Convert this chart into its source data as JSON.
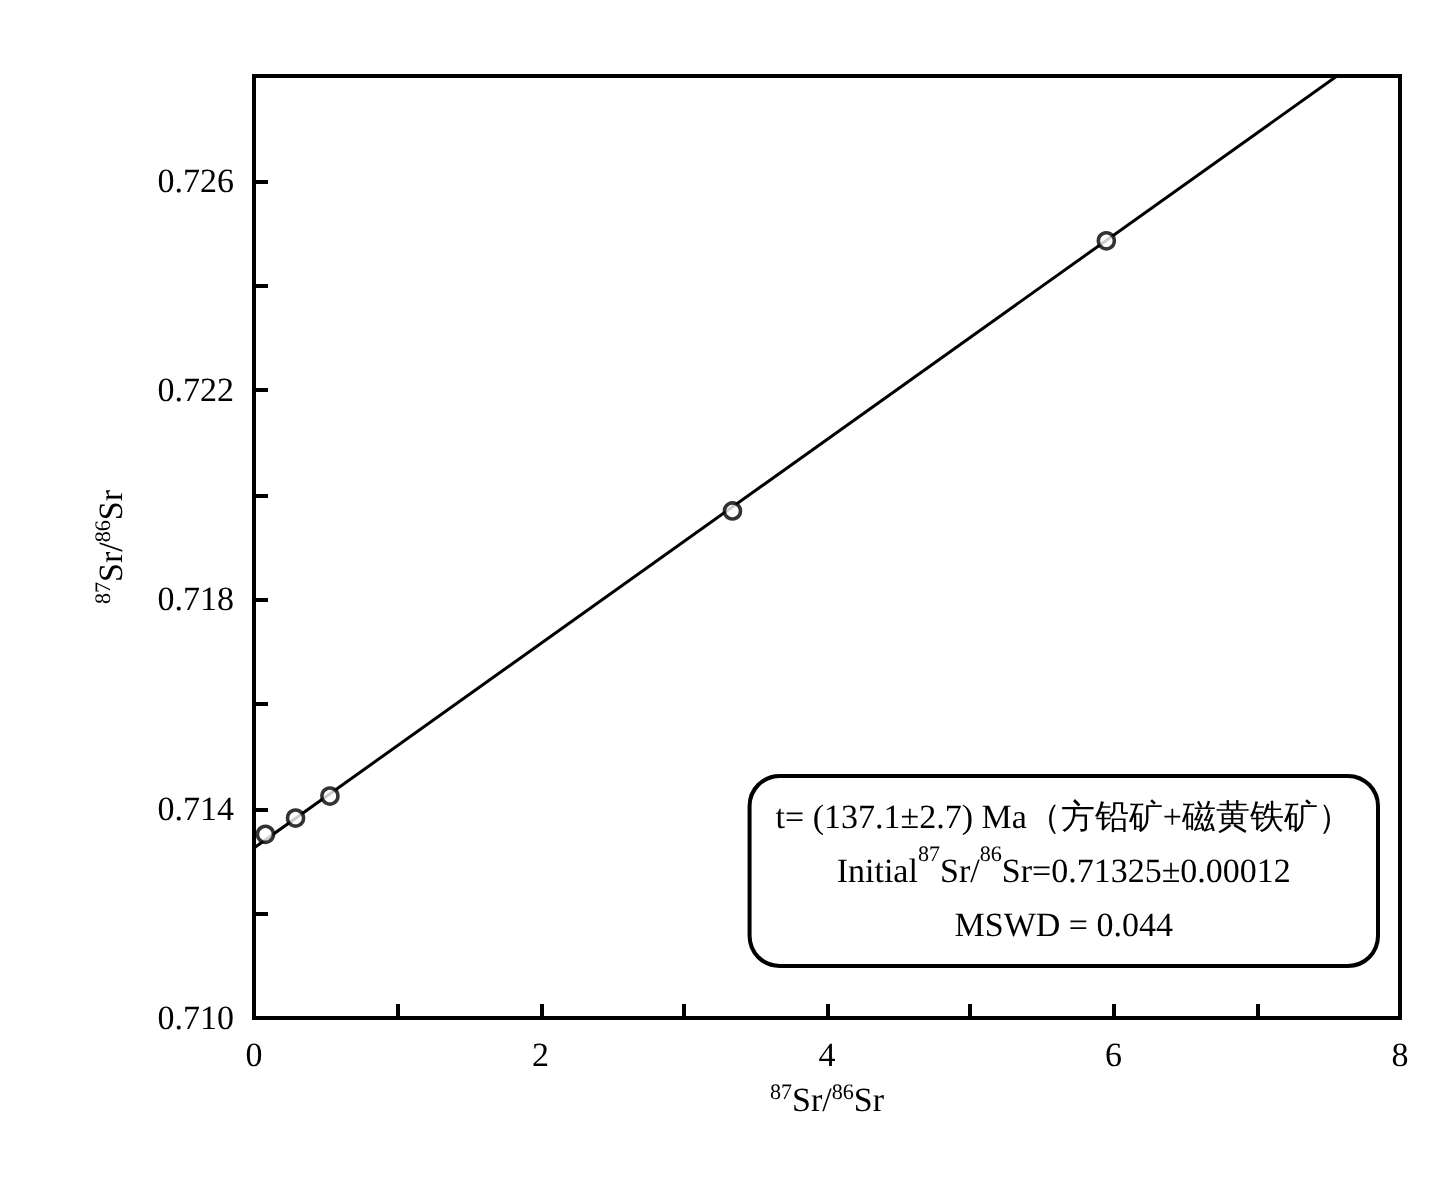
{
  "chart_data": {
    "type": "scatter",
    "xlabel": "$^{87}$Sr/$^{86}$Sr",
    "ylabel": "$^{87}$Sr/$^{86}$Sr",
    "series": [
      {
        "color": "#000000",
        "marker": "circle",
        "x": [
          0.08,
          0.29,
          0.53,
          3.34,
          5.95
        ],
        "values": [
          0.71351,
          0.71382,
          0.71424,
          0.71969,
          0.72485
        ]
      },
      {
        "type": "line",
        "color": "#000000",
        "marker": "none",
        "line_style": "solid",
        "x": [
          0,
          7.56
        ],
        "values": [
          0.71325,
          0.728
        ]
      }
    ],
    "xlim": [
      0,
      8
    ],
    "ylim": [
      0.71,
      0.728
    ],
    "xticks": [
      0,
      {
        "value": 1,
        "label": null
      },
      2,
      {
        "value": 3,
        "label": null
      },
      4,
      {
        "value": 5,
        "label": null
      },
      6,
      {
        "value": 7,
        "label": null
      },
      8
    ],
    "yticks": [
      {
        "value": 0.71,
        "label": "0.710"
      },
      {
        "value": 0.712,
        "label": null
      },
      {
        "value": 0.714,
        "label": "0.714"
      },
      {
        "value": 0.716,
        "label": null
      },
      {
        "value": 0.718,
        "label": "0.718"
      },
      {
        "value": 0.72,
        "label": null
      },
      {
        "value": 0.722,
        "label": "0.722"
      },
      {
        "value": 0.724,
        "label": null
      },
      {
        "value": 0.726,
        "label": "0.726"
      }
    ],
    "grid": false,
    "annotations": [
      "t= (137.1±2.7) Ma（方铅矿+磁黄铁矿）",
      "Initial$^{87}$Sr/$^{86}$Sr=0.71325±0.00012",
      "MSWD = 0.044"
    ]
  }
}
